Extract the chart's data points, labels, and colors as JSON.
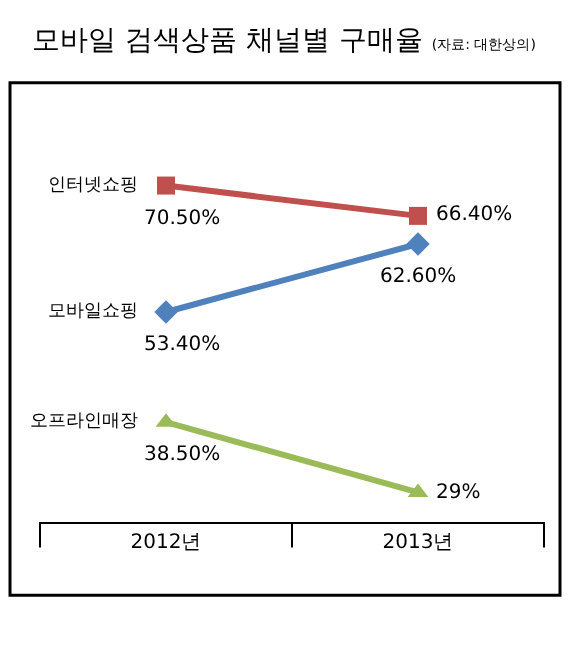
{
  "chart_data": {
    "type": "line",
    "title": "모바일 검색상품 채널별 구매율",
    "subtitle": "(자료: 대한상의)",
    "categories": [
      "2012년",
      "2013년"
    ],
    "tick_labels": "x",
    "legend": false,
    "line_style": "solid",
    "series": [
      {
        "name": "인터넷쇼핑",
        "color": "#c0504d",
        "marker": "square",
        "values": [
          70.5,
          66.4
        ],
        "value_labels": [
          "70.50%",
          "66.40%"
        ]
      },
      {
        "name": "모바일쇼핑",
        "color": "#4f81bd",
        "marker": "diamond",
        "values": [
          53.4,
          62.6
        ],
        "value_labels": [
          "53.40%",
          "62.60%"
        ]
      },
      {
        "name": "오프라인매장",
        "color": "#9bbb59",
        "marker": "triangle",
        "values": [
          38.5,
          29
        ],
        "value_labels": [
          "38.50%",
          "29%"
        ]
      }
    ]
  }
}
